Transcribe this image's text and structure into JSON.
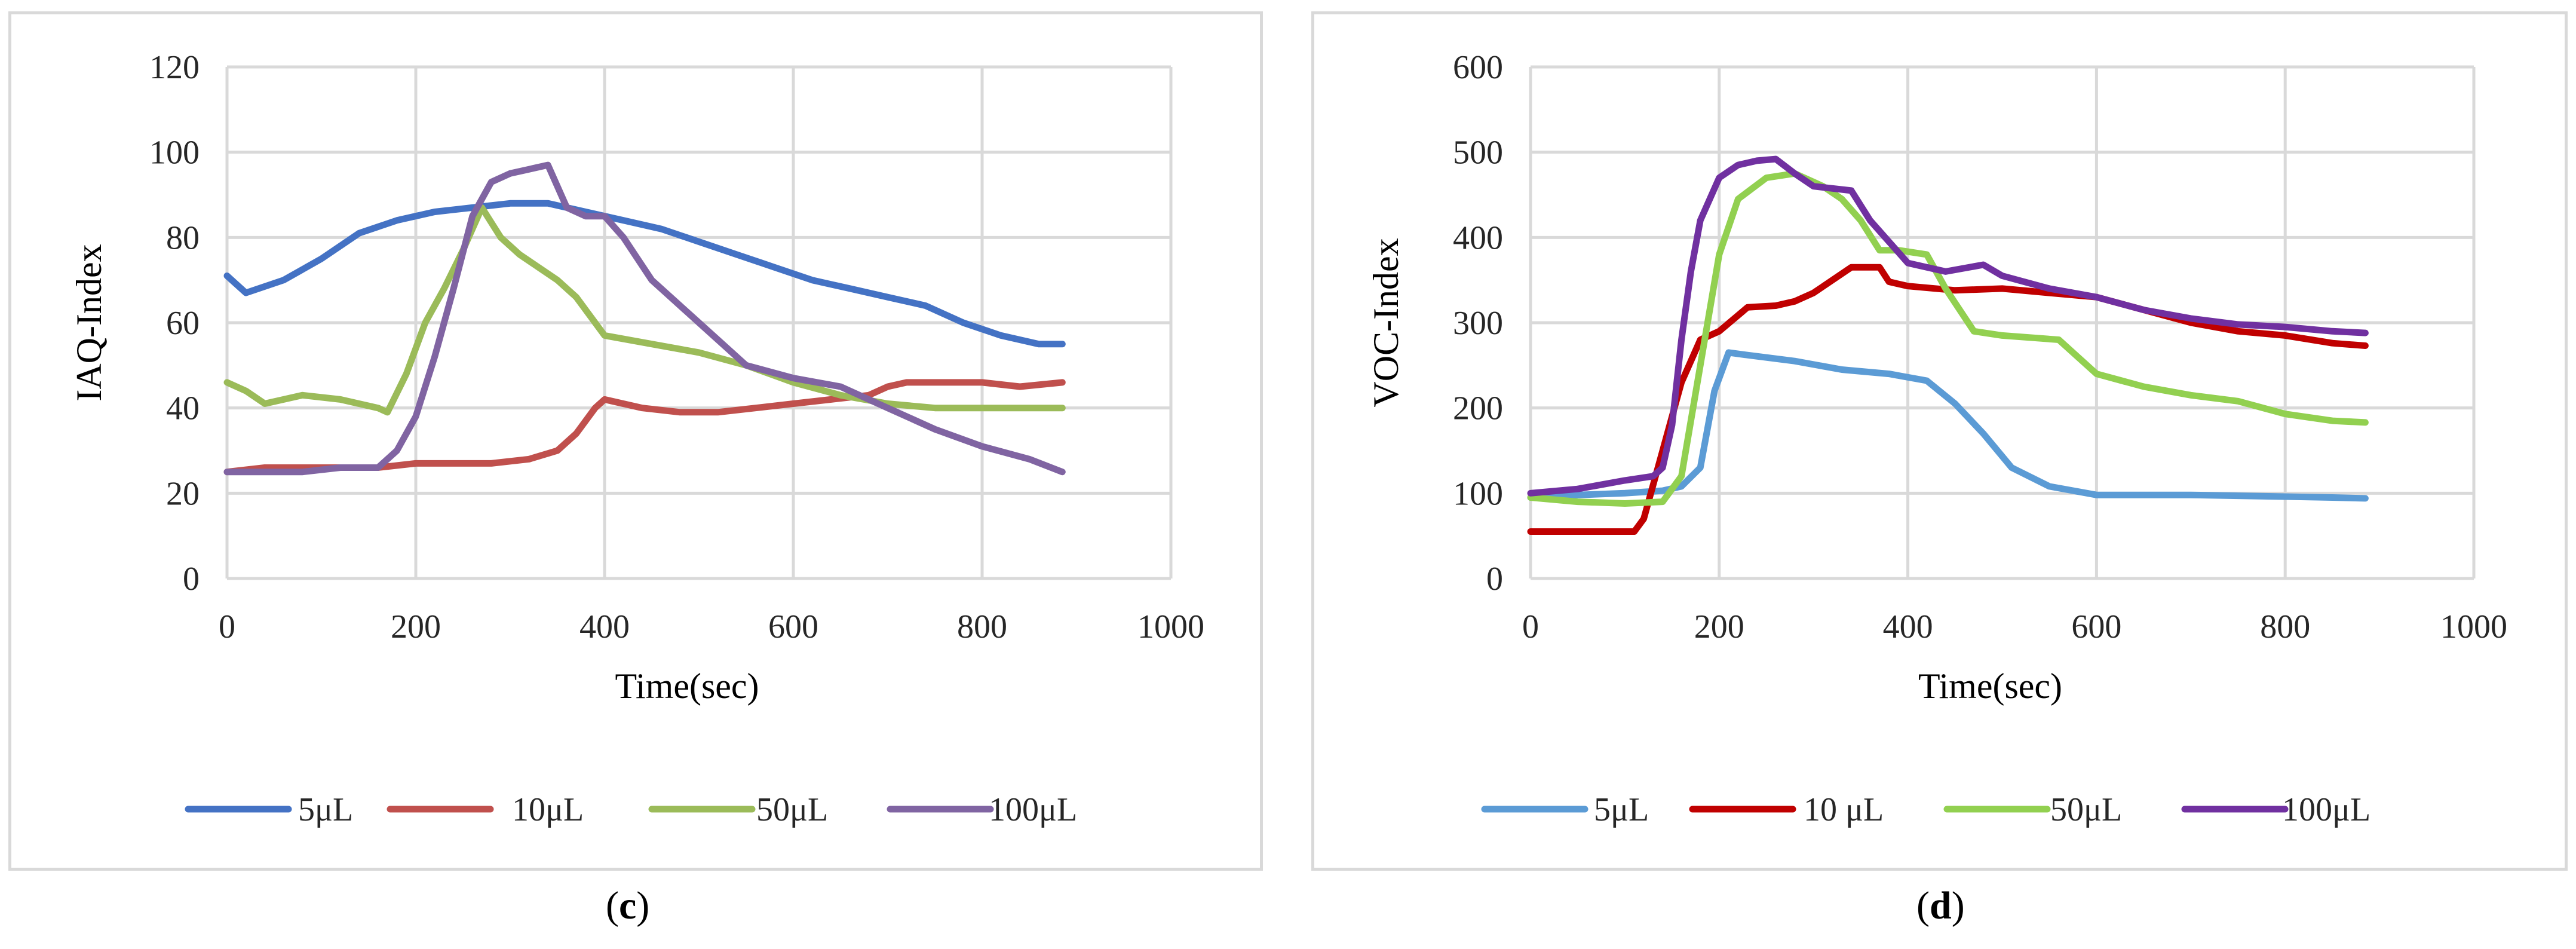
{
  "chart_data": [
    {
      "type": "line",
      "panel": "c",
      "ylabel": "IAQ-Index",
      "xlabel": "Time(sec)",
      "xlim": [
        0,
        1000
      ],
      "ylim": [
        0,
        120
      ],
      "xticks": [
        0,
        200,
        400,
        600,
        800,
        1000
      ],
      "yticks": [
        0,
        20,
        40,
        60,
        80,
        100,
        120
      ],
      "xtick_labels": [
        "0",
        "200",
        "400",
        "600",
        "800",
        "1000"
      ],
      "ytick_labels": [
        "0",
        "20",
        "40",
        "60",
        "80",
        "100",
        "120"
      ],
      "grid": true,
      "legend_position": "bottom",
      "series": [
        {
          "name": "5μL",
          "color": "#4472c4",
          "x": [
            0,
            20,
            60,
            100,
            140,
            180,
            220,
            260,
            300,
            340,
            380,
            420,
            460,
            500,
            540,
            580,
            620,
            660,
            700,
            740,
            780,
            820,
            860,
            885
          ],
          "y": [
            71,
            67,
            70,
            75,
            81,
            84,
            86,
            87,
            88,
            88,
            86,
            84,
            82,
            79,
            76,
            73,
            70,
            68,
            66,
            64,
            60,
            57,
            55,
            55
          ]
        },
        {
          "name": "10μL",
          "color": "#c0504d",
          "x": [
            0,
            40,
            80,
            120,
            160,
            200,
            240,
            280,
            320,
            350,
            370,
            390,
            400,
            440,
            480,
            520,
            560,
            600,
            640,
            680,
            700,
            720,
            760,
            800,
            840,
            885
          ],
          "y": [
            25,
            26,
            26,
            26,
            26,
            27,
            27,
            27,
            28,
            30,
            34,
            40,
            42,
            40,
            39,
            39,
            40,
            41,
            42,
            43,
            45,
            46,
            46,
            46,
            45,
            46
          ]
        },
        {
          "name": "50μL",
          "color": "#9bbb59",
          "x": [
            0,
            20,
            40,
            80,
            120,
            160,
            170,
            190,
            210,
            230,
            250,
            270,
            290,
            310,
            330,
            350,
            370,
            400,
            450,
            500,
            550,
            600,
            650,
            700,
            750,
            800,
            850,
            885
          ],
          "y": [
            46,
            44,
            41,
            43,
            42,
            40,
            39,
            48,
            60,
            68,
            77,
            87,
            80,
            76,
            73,
            70,
            66,
            57,
            55,
            53,
            50,
            46,
            43,
            41,
            40,
            40,
            40,
            40
          ]
        },
        {
          "name": "100μL",
          "color": "#8064a2",
          "x": [
            0,
            40,
            80,
            120,
            160,
            180,
            200,
            220,
            240,
            260,
            280,
            300,
            320,
            340,
            360,
            380,
            400,
            420,
            450,
            500,
            550,
            600,
            650,
            700,
            750,
            800,
            850,
            885
          ],
          "y": [
            25,
            25,
            25,
            26,
            26,
            30,
            38,
            52,
            68,
            85,
            93,
            95,
            96,
            97,
            87,
            85,
            85,
            80,
            70,
            60,
            50,
            47,
            45,
            40,
            35,
            31,
            28,
            25
          ]
        }
      ]
    },
    {
      "type": "line",
      "panel": "d",
      "ylabel": "VOC-Index",
      "xlabel": "Time(sec)",
      "xlim": [
        0,
        1000
      ],
      "ylim": [
        0,
        600
      ],
      "xticks": [
        0,
        200,
        400,
        600,
        800,
        1000
      ],
      "yticks": [
        0,
        100,
        200,
        300,
        400,
        500,
        600
      ],
      "xtick_labels": [
        "0",
        "200",
        "400",
        "600",
        "800",
        "1000"
      ],
      "ytick_labels": [
        "0",
        "100",
        "200",
        "300",
        "400",
        "500",
        "600"
      ],
      "grid": true,
      "legend_position": "bottom",
      "series": [
        {
          "name": "5μL",
          "color": "#5b9bd5",
          "x": [
            0,
            50,
            100,
            140,
            160,
            180,
            195,
            210,
            230,
            280,
            330,
            380,
            420,
            450,
            480,
            510,
            550,
            600,
            650,
            700,
            750,
            800,
            850,
            885
          ],
          "y": [
            95,
            98,
            100,
            103,
            108,
            130,
            220,
            265,
            262,
            255,
            245,
            240,
            232,
            205,
            170,
            130,
            108,
            98,
            98,
            98,
            97,
            96,
            95,
            94
          ]
        },
        {
          "name": "10 μL",
          "color": "#c00000",
          "x": [
            0,
            50,
            110,
            120,
            140,
            160,
            180,
            200,
            230,
            260,
            280,
            300,
            340,
            370,
            380,
            400,
            450,
            500,
            550,
            600,
            650,
            700,
            750,
            800,
            850,
            885
          ],
          "y": [
            55,
            55,
            55,
            70,
            150,
            230,
            280,
            290,
            318,
            320,
            325,
            335,
            365,
            365,
            348,
            343,
            338,
            340,
            335,
            330,
            315,
            300,
            290,
            285,
            276,
            273
          ]
        },
        {
          "name": "50μL",
          "color": "#92d050",
          "x": [
            0,
            50,
            100,
            140,
            160,
            180,
            200,
            220,
            250,
            280,
            310,
            330,
            350,
            370,
            390,
            420,
            440,
            470,
            500,
            560,
            580,
            600,
            650,
            700,
            750,
            800,
            850,
            885
          ],
          "y": [
            95,
            90,
            88,
            90,
            120,
            250,
            380,
            445,
            470,
            475,
            460,
            445,
            420,
            385,
            385,
            380,
            340,
            290,
            285,
            280,
            260,
            240,
            225,
            215,
            208,
            193,
            185,
            183
          ]
        },
        {
          "name": "100μL",
          "color": "#7030a0",
          "x": [
            0,
            50,
            100,
            130,
            140,
            150,
            160,
            170,
            180,
            200,
            220,
            240,
            260,
            280,
            300,
            340,
            360,
            380,
            400,
            440,
            480,
            500,
            550,
            600,
            650,
            700,
            750,
            800,
            850,
            885
          ],
          "y": [
            100,
            105,
            115,
            120,
            130,
            180,
            280,
            360,
            420,
            470,
            485,
            490,
            492,
            475,
            460,
            455,
            420,
            395,
            370,
            360,
            368,
            355,
            340,
            330,
            315,
            305,
            298,
            295,
            290,
            288
          ]
        }
      ]
    }
  ],
  "captions": {
    "c": {
      "open": "(",
      "letter": "c",
      "close": ")"
    },
    "d": {
      "open": "(",
      "letter": "d",
      "close": ")"
    }
  }
}
